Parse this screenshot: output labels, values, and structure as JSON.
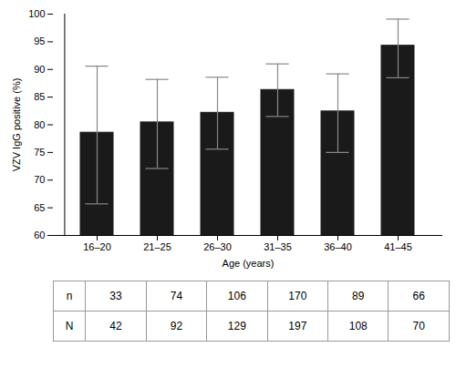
{
  "chart_data": {
    "type": "bar",
    "categories": [
      "16–20",
      "21–25",
      "26–30",
      "31–35",
      "36–40",
      "41–45"
    ],
    "values": [
      78.57,
      80.43,
      82.17,
      86.29,
      82.41,
      94.29
    ],
    "ci_lower": [
      65.7,
      72.1,
      75.6,
      81.5,
      75.0,
      88.5
    ],
    "ci_upper": [
      90.6,
      88.2,
      88.6,
      91.0,
      89.2,
      99.1
    ],
    "color": "#1a1a1a",
    "errorbar_color": "#888888",
    "xlabel": "Age (years)",
    "ylabel": "VZV IgG positive (%)",
    "ylim": [
      60,
      100
    ],
    "yticks": [
      60,
      65,
      70,
      75,
      80,
      85,
      90,
      95,
      100
    ],
    "grid": false,
    "row_labels": [
      "n",
      "N"
    ],
    "n_values": [
      33,
      74,
      106,
      170,
      89,
      66
    ],
    "N_values": [
      42,
      92,
      129,
      197,
      108,
      70
    ],
    "table_edge_color": "#999999"
  }
}
